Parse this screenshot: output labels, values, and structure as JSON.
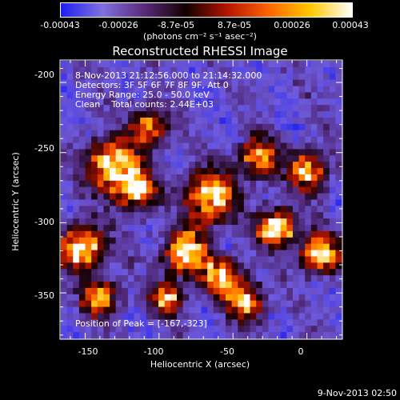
{
  "colorbar": {
    "tick_labels": [
      "-0.00043",
      "-0.00026",
      "-8.7e-05",
      "8.7e-05",
      "0.00026",
      "0.00043"
    ],
    "unit_label": "(photons cm⁻² s⁻¹ asec⁻²)",
    "colors": [
      "#1e1ef0",
      "#8070e0",
      "#5a2a7a",
      "#120000",
      "#b41400",
      "#ff6400",
      "#ffc800",
      "#ffffff"
    ]
  },
  "image": {
    "title": "Reconstructed RHESSI Image",
    "info_lines": [
      "8-Nov-2013 21:12:56.000 to 21:14:32.000",
      "Detectors: 3F 5F 6F 7F 8F 9F, Att 0",
      "Energy Range: 25.0 - 50.0 keV",
      "Clean    Total counts: 2.44E+03"
    ],
    "peak_label": "Position of Peak = [-167,-323]",
    "peak": [
      -167,
      -323
    ],
    "x_range": [
      -167,
      24
    ],
    "y_range": [
      -383,
      -184
    ],
    "x_ticks": [
      -150,
      -100,
      -50,
      0
    ],
    "y_ticks": [
      -350,
      -300,
      -250,
      -200
    ],
    "x_tick_labels": [
      "-150",
      "-100",
      "-50",
      "0"
    ],
    "y_tick_labels": [
      "-350",
      "-300",
      "-250",
      "-200"
    ],
    "xlabel": "Heliocentric X (arcsec)",
    "ylabel": "Heliocentric Y (arcsec)"
  },
  "footer": {
    "timestamp": "9-Nov-2013 02:50"
  }
}
